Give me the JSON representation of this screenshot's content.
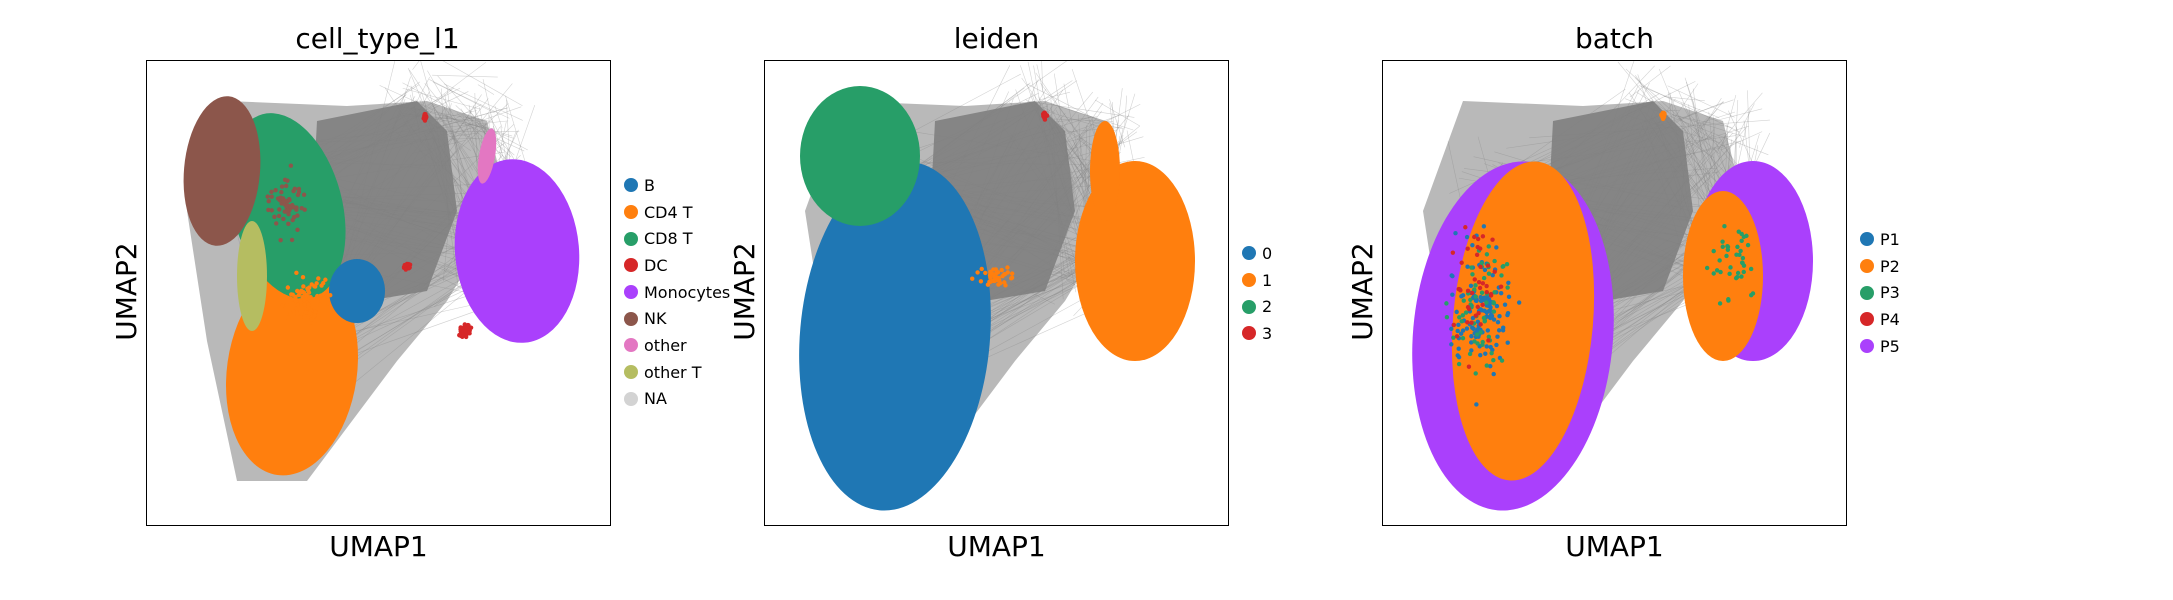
{
  "chart_data": [
    {
      "type": "scatter",
      "title": "cell_type_l1",
      "xlabel": "UMAP1",
      "ylabel": "UMAP2",
      "legend_position": "right",
      "legend": [
        {
          "label": "B",
          "color": "#1f77b4"
        },
        {
          "label": "CD4 T",
          "color": "#ff7f0e"
        },
        {
          "label": "CD8 T",
          "color": "#279e68"
        },
        {
          "label": "DC",
          "color": "#d62728"
        },
        {
          "label": "Monocytes",
          "color": "#aa40fc"
        },
        {
          "label": "NK",
          "color": "#8c564b"
        },
        {
          "label": "other",
          "color": "#e377c2"
        },
        {
          "label": "other T",
          "color": "#b5bd61"
        },
        {
          "label": "NA",
          "color": "#d3d3d3"
        }
      ]
    },
    {
      "type": "scatter",
      "title": "leiden",
      "xlabel": "UMAP1",
      "ylabel": "UMAP2",
      "legend_position": "right",
      "legend": [
        {
          "label": "0",
          "color": "#1f77b4"
        },
        {
          "label": "1",
          "color": "#ff7f0e"
        },
        {
          "label": "2",
          "color": "#279e68"
        },
        {
          "label": "3",
          "color": "#d62728"
        }
      ]
    },
    {
      "type": "scatter",
      "title": "batch",
      "xlabel": "UMAP1",
      "ylabel": "UMAP2",
      "legend_position": "right",
      "legend": [
        {
          "label": "P1",
          "color": "#1f77b4"
        },
        {
          "label": "P2",
          "color": "#ff7f0e"
        },
        {
          "label": "P3",
          "color": "#279e68"
        },
        {
          "label": "P4",
          "color": "#d62728"
        },
        {
          "label": "P5",
          "color": "#aa40fc"
        }
      ]
    }
  ],
  "edge_color": "#808080"
}
